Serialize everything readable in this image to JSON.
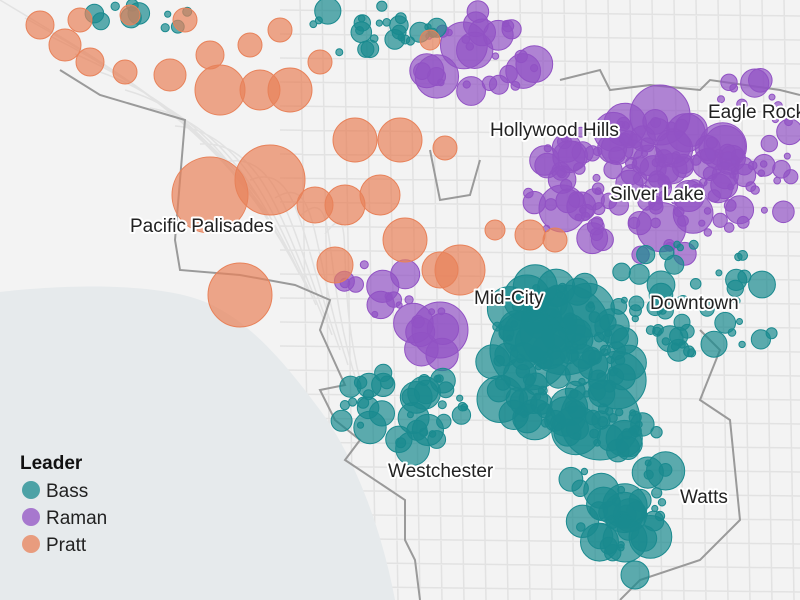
{
  "legend": {
    "title": "Leader",
    "items": [
      {
        "label": "Bass",
        "color": "#1a8a8f"
      },
      {
        "label": "Raman",
        "color": "#9152c4"
      },
      {
        "label": "Pratt",
        "color": "#e8825a"
      }
    ]
  },
  "places": [
    "Hollywood Hills",
    "Eagle Rock",
    "Silver Lake",
    "Pacific Palisades",
    "Mid-City",
    "Downtown",
    "Westchester",
    "Watts"
  ]
}
